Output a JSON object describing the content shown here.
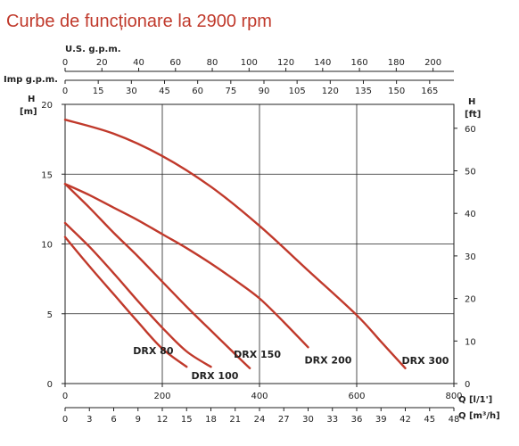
{
  "chart_data": {
    "type": "line",
    "title": "Curbe de funcționare la 2900 rpm",
    "xlabel": "Q [l/1']",
    "xlabel_m3h": "Q [m³/h]",
    "ylabel_left": "H",
    "ylabel_left_unit": "[m]",
    "ylabel_right": "H",
    "ylabel_right_unit": "[ft]",
    "top_axis_usgpm_label": "U.S. g.p.m.",
    "top_axis_impgpm_label": "Imp g.p.m.",
    "xlim": [
      0,
      800
    ],
    "ylim": [
      0,
      20
    ],
    "grid": true,
    "x_ticks": [
      0,
      200,
      400,
      600,
      800
    ],
    "y_ticks": [
      0,
      5,
      10,
      15,
      20
    ],
    "ft_ticks": [
      0,
      10,
      20,
      30,
      40,
      50,
      60
    ],
    "m3h_ticks": [
      0,
      3,
      6,
      9,
      12,
      15,
      18,
      21,
      24,
      27,
      30,
      33,
      36,
      39,
      42,
      45,
      48
    ],
    "usgpm_ticks": [
      0,
      20,
      40,
      60,
      80,
      100,
      120,
      140,
      160,
      180,
      200
    ],
    "impgpm_ticks": [
      0,
      15,
      30,
      45,
      60,
      75,
      90,
      105,
      120,
      135,
      150,
      165
    ],
    "line_color": "#c0392b",
    "series": [
      {
        "name": "DRX 80",
        "x": [
          0,
          50,
          100,
          150,
          200,
          250
        ],
        "y": [
          10.5,
          8.4,
          6.4,
          4.4,
          2.5,
          1.2
        ]
      },
      {
        "name": "DRX 100",
        "x": [
          0,
          50,
          100,
          150,
          200,
          250,
          300
        ],
        "y": [
          11.5,
          9.8,
          7.9,
          5.9,
          4.0,
          2.3,
          1.2
        ]
      },
      {
        "name": "DRX 150",
        "x": [
          0,
          50,
          100,
          150,
          200,
          250,
          300,
          350,
          380
        ],
        "y": [
          14.3,
          12.6,
          10.8,
          9.1,
          7.3,
          5.5,
          3.8,
          2.1,
          1.1
        ]
      },
      {
        "name": "DRX 200",
        "x": [
          0,
          50,
          100,
          150,
          200,
          250,
          300,
          350,
          400,
          450,
          500
        ],
        "y": [
          14.3,
          13.5,
          12.6,
          11.7,
          10.7,
          9.7,
          8.6,
          7.4,
          6.1,
          4.4,
          2.6
        ]
      },
      {
        "name": "DRX 300",
        "x": [
          0,
          100,
          200,
          300,
          400,
          500,
          600,
          650,
          700
        ],
        "y": [
          18.9,
          17.9,
          16.3,
          14.1,
          11.3,
          8.1,
          4.9,
          3.0,
          1.1
        ]
      }
    ]
  }
}
